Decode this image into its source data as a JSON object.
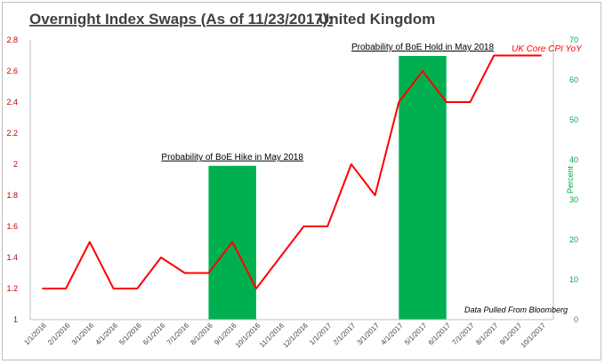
{
  "title": {
    "main": "Overnight Index Swaps (As of 11/23/2017):",
    "country": "United Kingdom"
  },
  "colors": {
    "line": "#ff0000",
    "bar": "#00b050",
    "left_axis": "#c00000",
    "right_axis": "#00a84f"
  },
  "chart_data": {
    "type": "line",
    "categories": [
      "1/1/2016",
      "2/1/2016",
      "3/1/2016",
      "4/1/2016",
      "5/1/2016",
      "6/1/2016",
      "7/1/2016",
      "8/1/2016",
      "9/1/2016",
      "10/1/2016",
      "11/1/2016",
      "12/1/2016",
      "1/1/2017",
      "2/1/2017",
      "3/1/2017",
      "4/1/2017",
      "5/1/2017",
      "6/1/2017",
      "7/1/2017",
      "8/1/2017",
      "9/1/2017",
      "10/1/2017"
    ],
    "series": [
      {
        "name": "UK Core CPI YoY",
        "axis": "left",
        "values": [
          1.2,
          1.2,
          1.5,
          1.2,
          1.2,
          1.4,
          1.3,
          1.3,
          1.5,
          1.2,
          1.4,
          1.6,
          1.6,
          2.0,
          1.8,
          2.4,
          2.6,
          2.4,
          2.4,
          2.7,
          2.7,
          2.7
        ]
      }
    ],
    "bars": [
      {
        "label": "Probability of BoE Hike in May 2018",
        "x_from": "8/1/2016",
        "x_to": "10/1/2016",
        "value": 38.5,
        "axis": "right"
      },
      {
        "label": "Probability of BoE Hold in May 2018",
        "x_from": "4/1/2017",
        "x_to": "6/1/2017",
        "value": 66,
        "axis": "right"
      }
    ],
    "left_axis": {
      "ylim": [
        1,
        2.8
      ],
      "ticks": [
        "1",
        "1.2",
        "1.4",
        "1.6",
        "1.8",
        "2",
        "2.2",
        "2.4",
        "2.6",
        "2.8"
      ]
    },
    "right_axis": {
      "label": "Percent",
      "ylim": [
        0,
        70
      ],
      "ticks": [
        "0",
        "10",
        "20",
        "30",
        "40",
        "50",
        "60",
        "70"
      ]
    },
    "annotations": {
      "series_label": "UK Core CPI YoY",
      "source": "Data Pulled From Bloomberg"
    },
    "grid": false,
    "legend": "top-right"
  }
}
